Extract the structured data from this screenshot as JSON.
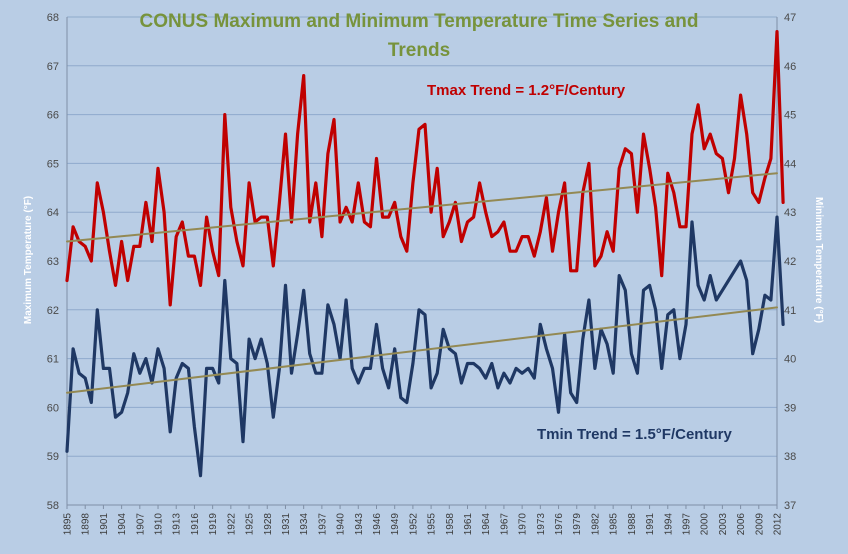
{
  "chart_data": {
    "type": "line",
    "title_lines": [
      "CONUS Maximum and Minimum Temperature Time Series and",
      "Trends"
    ],
    "ylabel_left": "Maximum Temperature (°F)",
    "ylabel_right": "Minimum Temperature (°F)",
    "ylim_left": [
      58,
      68
    ],
    "ylim_right": [
      37,
      47
    ],
    "yticks_left": [
      58,
      59,
      60,
      61,
      62,
      63,
      64,
      65,
      66,
      67,
      68
    ],
    "yticks_right": [
      37,
      38,
      39,
      40,
      41,
      42,
      43,
      44,
      45,
      46,
      47
    ],
    "xlim": [
      1895,
      2012
    ],
    "xticks": [
      "1895",
      "1898",
      "1901",
      "1904",
      "1907",
      "1910",
      "1913",
      "1916",
      "1919",
      "1922",
      "1925",
      "1928",
      "1931",
      "1934",
      "1937",
      "1940",
      "1943",
      "1946",
      "1949",
      "1952",
      "1955",
      "1958",
      "1961",
      "1964",
      "1967",
      "1970",
      "1973",
      "1976",
      "1979",
      "1982",
      "1985",
      "1988",
      "1991",
      "1994",
      "1997",
      "2000",
      "2003",
      "2006",
      "2009",
      "2012"
    ],
    "grid": "horizontal",
    "annotations": [
      {
        "text": "Tmax Trend = 1.2°F/Century",
        "color": "#c00000"
      },
      {
        "text": "Tmin Trend = 1.5°F/Century",
        "color": "#1f3864"
      }
    ],
    "series": [
      {
        "key": "tmax",
        "axis": "left",
        "color": "#c00000",
        "x_start": 1895,
        "values": [
          62.6,
          63.7,
          63.4,
          63.3,
          63.0,
          64.6,
          64.0,
          63.2,
          62.5,
          63.4,
          62.6,
          63.3,
          63.3,
          64.2,
          63.4,
          64.9,
          64.0,
          62.1,
          63.5,
          63.8,
          63.1,
          63.1,
          62.5,
          63.9,
          63.2,
          62.7,
          66.0,
          64.1,
          63.4,
          62.9,
          64.6,
          63.8,
          63.9,
          63.9,
          62.9,
          64.2,
          65.6,
          63.8,
          65.6,
          66.8,
          63.8,
          64.6,
          63.5,
          65.2,
          65.9,
          63.8,
          64.1,
          63.8,
          64.6,
          63.8,
          63.7,
          65.1,
          63.9,
          63.9,
          64.2,
          63.5,
          63.2,
          64.6,
          65.7,
          65.8,
          64.0,
          64.9,
          63.5,
          63.8,
          64.2,
          63.4,
          63.8,
          63.9,
          64.6,
          64.0,
          63.5,
          63.6,
          63.8,
          63.2,
          63.2,
          63.5,
          63.5,
          63.1,
          63.6,
          64.3,
          63.2,
          64.0,
          64.6,
          62.8,
          62.8,
          64.4,
          65.0,
          62.9,
          63.1,
          63.6,
          63.2,
          64.9,
          65.3,
          65.2,
          64.0,
          65.6,
          64.9,
          64.1,
          62.7,
          64.8,
          64.4,
          63.7,
          63.7,
          65.6,
          66.2,
          65.3,
          65.6,
          65.2,
          65.1,
          64.4,
          65.1,
          66.4,
          65.6,
          64.4,
          64.2,
          64.7,
          65.1,
          67.7,
          64.2
        ]
      },
      {
        "key": "tmin",
        "axis": "right",
        "color": "#1f3864",
        "x_start": 1895,
        "values": [
          38.1,
          40.2,
          39.7,
          39.6,
          39.1,
          41.0,
          39.8,
          39.8,
          38.8,
          38.9,
          39.3,
          40.1,
          39.7,
          40.0,
          39.5,
          40.2,
          39.8,
          38.5,
          39.6,
          39.9,
          39.8,
          38.6,
          37.6,
          39.8,
          39.8,
          39.5,
          41.6,
          40.0,
          39.9,
          38.3,
          40.4,
          40.0,
          40.4,
          39.9,
          38.8,
          39.8,
          41.5,
          39.7,
          40.5,
          41.4,
          40.1,
          39.7,
          39.7,
          41.1,
          40.7,
          40.0,
          41.2,
          39.8,
          39.5,
          39.8,
          39.8,
          40.7,
          39.8,
          39.4,
          40.2,
          39.2,
          39.1,
          39.9,
          41.0,
          40.9,
          39.4,
          39.7,
          40.6,
          40.2,
          40.1,
          39.5,
          39.9,
          39.9,
          39.8,
          39.6,
          39.9,
          39.4,
          39.7,
          39.5,
          39.8,
          39.7,
          39.8,
          39.6,
          40.7,
          40.2,
          39.8,
          38.9,
          40.5,
          39.3,
          39.1,
          40.4,
          41.2,
          39.8,
          40.6,
          40.3,
          39.7,
          41.7,
          41.4,
          40.1,
          39.7,
          41.4,
          41.5,
          41.0,
          39.8,
          40.9,
          41.0,
          40.0,
          40.7,
          42.8,
          41.5,
          41.2,
          41.7,
          41.2,
          41.4,
          41.6,
          41.8,
          42.0,
          41.6,
          40.1,
          40.6,
          41.3,
          41.2,
          42.9,
          40.7
        ]
      },
      {
        "key": "tmax-trend",
        "axis": "left",
        "color": "#938953",
        "x": [
          1895,
          2012
        ],
        "values": [
          63.4,
          64.8
        ]
      },
      {
        "key": "tmin-trend",
        "axis": "right",
        "color": "#938953",
        "x": [
          1895,
          2012
        ],
        "values": [
          39.3,
          41.05
        ]
      }
    ]
  }
}
